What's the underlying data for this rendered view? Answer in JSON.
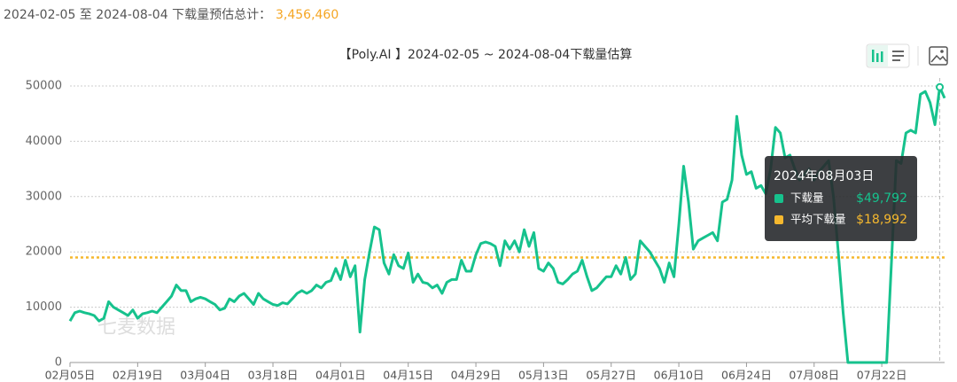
{
  "header": {
    "summary": "2024-02-05 至 2024-08-04 下载量预估总计：",
    "total": "3,456,460"
  },
  "watermark": "七麦数据",
  "chart_data": {
    "type": "line",
    "title": "【Poly.AI 】2024-02-05 ~ 2024-08-04下载量估算",
    "categories": [
      "02月05日",
      null,
      null,
      null,
      null,
      null,
      null,
      null,
      null,
      null,
      null,
      null,
      null,
      null,
      "02月19日",
      null,
      null,
      null,
      null,
      null,
      null,
      null,
      null,
      null,
      null,
      null,
      null,
      null,
      "03月04日",
      null,
      null,
      null,
      null,
      null,
      null,
      null,
      null,
      null,
      null,
      null,
      null,
      null,
      "03月18日",
      null,
      null,
      null,
      null,
      null,
      null,
      null,
      null,
      null,
      null,
      null,
      null,
      null,
      "04月01日",
      null,
      null,
      null,
      null,
      null,
      null,
      null,
      null,
      null,
      null,
      null,
      null,
      null,
      "04月15日",
      null,
      null,
      null,
      null,
      null,
      null,
      null,
      null,
      null,
      null,
      null,
      null,
      null,
      "04月29日",
      null,
      null,
      null,
      null,
      null,
      null,
      null,
      null,
      null,
      null,
      null,
      null,
      null,
      "05月13日",
      null,
      null,
      null,
      null,
      null,
      null,
      null,
      null,
      null,
      null,
      null,
      null,
      null,
      "05月27日",
      null,
      null,
      null,
      null,
      null,
      null,
      null,
      null,
      null,
      null,
      null,
      null,
      null,
      "06月10日",
      null,
      null,
      null,
      null,
      null,
      null,
      null,
      null,
      null,
      null,
      null,
      null,
      null,
      "06月24日",
      null,
      null,
      null,
      null,
      null,
      null,
      null,
      null,
      null,
      null,
      null,
      null,
      null,
      "07月08日",
      null,
      null,
      null,
      null,
      null,
      null,
      null,
      null,
      null,
      null,
      null,
      null,
      null,
      "07月22日",
      null,
      null,
      null,
      null,
      null,
      null,
      null,
      null,
      null,
      null,
      null,
      null,
      null
    ],
    "series": [
      {
        "name": "下载量",
        "color": "#16c28d",
        "values": [
          7500,
          9000,
          9300,
          9000,
          8800,
          8500,
          7500,
          8000,
          11000,
          10000,
          9500,
          9000,
          8500,
          9500,
          8000,
          8800,
          9000,
          9300,
          9000,
          10000,
          11000,
          12000,
          14000,
          13000,
          13000,
          11000,
          11500,
          11800,
          11500,
          11000,
          10500,
          9500,
          9800,
          11500,
          11000,
          12000,
          12500,
          11500,
          10500,
          12500,
          11500,
          11000,
          10500,
          10300,
          10800,
          10600,
          11500,
          12500,
          13000,
          12500,
          13000,
          14000,
          13500,
          14500,
          14800,
          17000,
          15000,
          18500,
          15500,
          17500,
          5500,
          15000,
          20000,
          24500,
          24000,
          18000,
          16000,
          19500,
          17500,
          17000,
          19800,
          14500,
          16000,
          14500,
          14300,
          13500,
          14000,
          12500,
          14500,
          15000,
          15000,
          18500,
          16500,
          16500,
          19500,
          21500,
          21800,
          21500,
          21000,
          17500,
          22000,
          20500,
          22000,
          20000,
          24000,
          21000,
          23500,
          17000,
          16500,
          18000,
          17000,
          14500,
          14200,
          15000,
          16000,
          16500,
          18500,
          15500,
          13000,
          13500,
          14500,
          15500,
          15500,
          17500,
          16000,
          19000,
          15000,
          16000,
          22000,
          21000,
          20000,
          18500,
          17000,
          14500,
          18000,
          15500,
          25000,
          35500,
          29000,
          20500,
          22000,
          22500,
          23000,
          23500,
          22000,
          29000,
          29500,
          33000,
          44500,
          37500,
          34000,
          34500,
          31500,
          32000,
          30500,
          35000,
          42500,
          41500,
          37000,
          37500,
          35000,
          33000,
          34000,
          35000,
          33000,
          34500,
          35500,
          36500,
          30000,
          20000,
          9000,
          0,
          0,
          0,
          0,
          0,
          0,
          0,
          0,
          0,
          18000,
          36500,
          36000,
          41500,
          42000,
          41500,
          48500,
          49000,
          47000,
          43000,
          49792,
          47800
        ]
      }
    ],
    "reference_line": {
      "name": "平均下载量",
      "value": 18992,
      "color": "#f5b82e"
    },
    "ylim": [
      0,
      50000
    ],
    "yticks": [
      0,
      10000,
      20000,
      30000,
      40000,
      50000
    ],
    "grid": true,
    "tooltip": {
      "title": "2024年08月03日",
      "index": 180,
      "value_labels": [
        "$49,792",
        "$18,992"
      ]
    }
  }
}
